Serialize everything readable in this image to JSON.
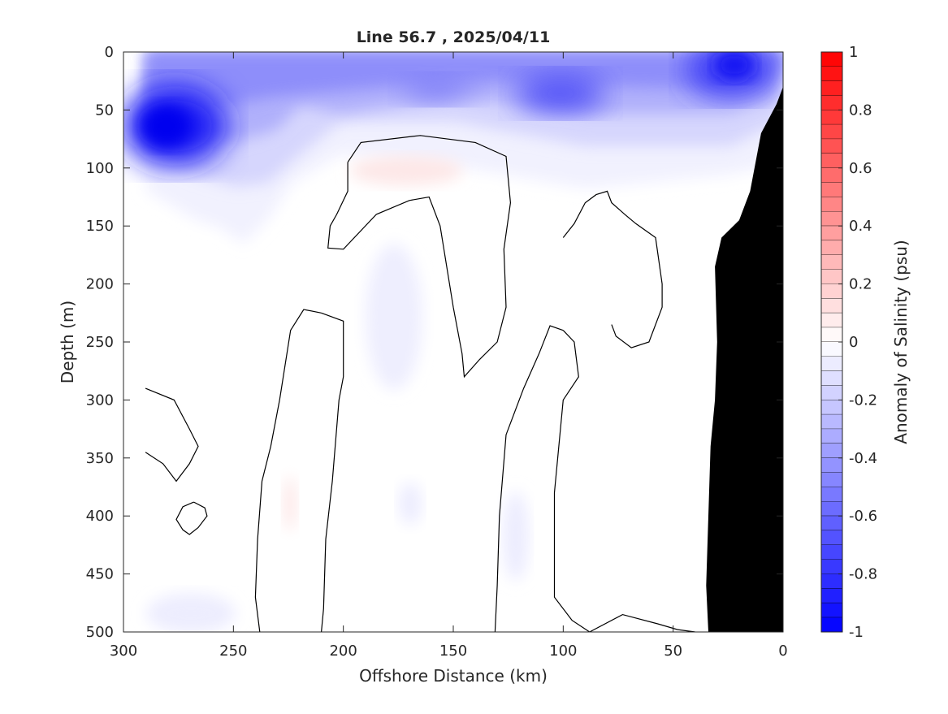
{
  "chart_data": {
    "type": "heatmap",
    "title": "Line 56.7 , 2025/04/11",
    "xlabel": "Offshore Distance (km)",
    "ylabel": "Depth (m)",
    "xlim": [
      300,
      0
    ],
    "ylim": [
      0,
      500
    ],
    "x_direction": "reversed",
    "y_direction": "reversed",
    "x_ticks": [
      "300",
      "250",
      "200",
      "150",
      "100",
      "50",
      "0"
    ],
    "x_tick_values": [
      300,
      250,
      200,
      150,
      100,
      50,
      0
    ],
    "y_ticks": [
      "0",
      "50",
      "100",
      "150",
      "200",
      "250",
      "300",
      "350",
      "400",
      "450",
      "500"
    ],
    "y_tick_values": [
      0,
      50,
      100,
      150,
      200,
      250,
      300,
      350,
      400,
      450,
      500
    ],
    "colorbar": {
      "label": "Anomaly of Salinity (psu)",
      "range": [
        -1,
        1
      ],
      "tick_labels": [
        "1",
        "0.8",
        "0.6",
        "0.4",
        "0.2",
        "0",
        "-0.2",
        "-0.4",
        "-0.6",
        "-0.8",
        "-1"
      ],
      "tick_values": [
        1,
        0.8,
        0.6,
        0.4,
        0.2,
        0,
        -0.2,
        -0.4,
        -0.6,
        -0.8,
        -1
      ],
      "levels": 40,
      "low_color": "#0000ff",
      "mid_color": "#ffffff",
      "high_color": "#ff0000"
    },
    "features": [
      {
        "name": "fresh-surface-layer",
        "anomaly": -0.6,
        "x_range": [
          290,
          0
        ],
        "depth_range": [
          0,
          120
        ]
      },
      {
        "name": "fresh-core-offshore",
        "anomaly": -0.95,
        "x": 283,
        "depth": 62
      },
      {
        "name": "fresh-core-nearshore",
        "anomaly": -0.85,
        "x": 22,
        "depth": 15
      },
      {
        "name": "salty-lens",
        "anomaly": 0.05,
        "x": 175,
        "depth": 95
      }
    ],
    "zero_contours": [
      [
        [
          198,
          95
        ],
        [
          192,
          78
        ],
        [
          165,
          72
        ],
        [
          140,
          78
        ],
        [
          126,
          90
        ],
        [
          124,
          130
        ],
        [
          127,
          170
        ],
        [
          126,
          220
        ],
        [
          130,
          250
        ],
        [
          138,
          265
        ],
        [
          145,
          280
        ],
        [
          146,
          260
        ],
        [
          150,
          220
        ],
        [
          156,
          150
        ],
        [
          161,
          125
        ],
        [
          170,
          128
        ],
        [
          185,
          140
        ],
        [
          200,
          170
        ],
        [
          207,
          169
        ],
        [
          206,
          150
        ],
        [
          203,
          140
        ],
        [
          198,
          120
        ],
        [
          198,
          95
        ]
      ],
      [
        [
          210,
          225
        ],
        [
          200,
          232
        ],
        [
          200,
          280
        ],
        [
          202,
          300
        ],
        [
          205,
          370
        ],
        [
          208,
          420
        ],
        [
          209,
          480
        ],
        [
          210,
          500
        ]
      ],
      [
        [
          210,
          225
        ],
        [
          218,
          222
        ],
        [
          224,
          240
        ],
        [
          229,
          300
        ],
        [
          233,
          340
        ],
        [
          237,
          370
        ],
        [
          239,
          420
        ],
        [
          240,
          470
        ],
        [
          238,
          500
        ]
      ],
      [
        [
          100,
          240
        ],
        [
          95,
          250
        ],
        [
          93,
          280
        ],
        [
          100,
          300
        ],
        [
          104,
          380
        ],
        [
          104,
          470
        ],
        [
          96,
          490
        ],
        [
          88,
          500
        ],
        [
          73,
          485
        ],
        [
          57,
          493
        ],
        [
          48,
          498
        ],
        [
          40,
          500
        ]
      ],
      [
        [
          100,
          240
        ],
        [
          106,
          236
        ],
        [
          111,
          260
        ],
        [
          118,
          290
        ],
        [
          126,
          330
        ],
        [
          129,
          400
        ],
        [
          130,
          460
        ],
        [
          131,
          500
        ]
      ],
      [
        [
          78,
          235
        ],
        [
          76,
          245
        ],
        [
          69,
          255
        ],
        [
          61,
          250
        ],
        [
          55,
          220
        ],
        [
          55,
          200
        ],
        [
          58,
          160
        ],
        [
          67,
          148
        ],
        [
          72,
          140
        ],
        [
          78,
          130
        ],
        [
          80,
          120
        ],
        [
          85,
          123
        ],
        [
          90,
          130
        ],
        [
          95,
          148
        ],
        [
          100,
          160
        ]
      ],
      [
        [
          290,
          290
        ],
        [
          277,
          300
        ],
        [
          270,
          325
        ],
        [
          266,
          340
        ],
        [
          270,
          355
        ],
        [
          276,
          370
        ],
        [
          282,
          355
        ],
        [
          290,
          345
        ]
      ],
      [
        [
          268,
          388
        ],
        [
          263,
          393
        ],
        [
          262,
          400
        ],
        [
          266,
          410
        ],
        [
          270,
          416
        ],
        [
          273,
          412
        ],
        [
          276,
          403
        ],
        [
          273,
          392
        ],
        [
          268,
          388
        ]
      ]
    ],
    "land_mask": [
      [
        0,
        30
      ],
      [
        3,
        45
      ],
      [
        10,
        70
      ],
      [
        15,
        120
      ],
      [
        20,
        145
      ],
      [
        28,
        160
      ],
      [
        31,
        185
      ],
      [
        30,
        250
      ],
      [
        31,
        300
      ],
      [
        33,
        340
      ],
      [
        34,
        400
      ],
      [
        35,
        460
      ],
      [
        34,
        500
      ],
      [
        0,
        500
      ]
    ]
  }
}
